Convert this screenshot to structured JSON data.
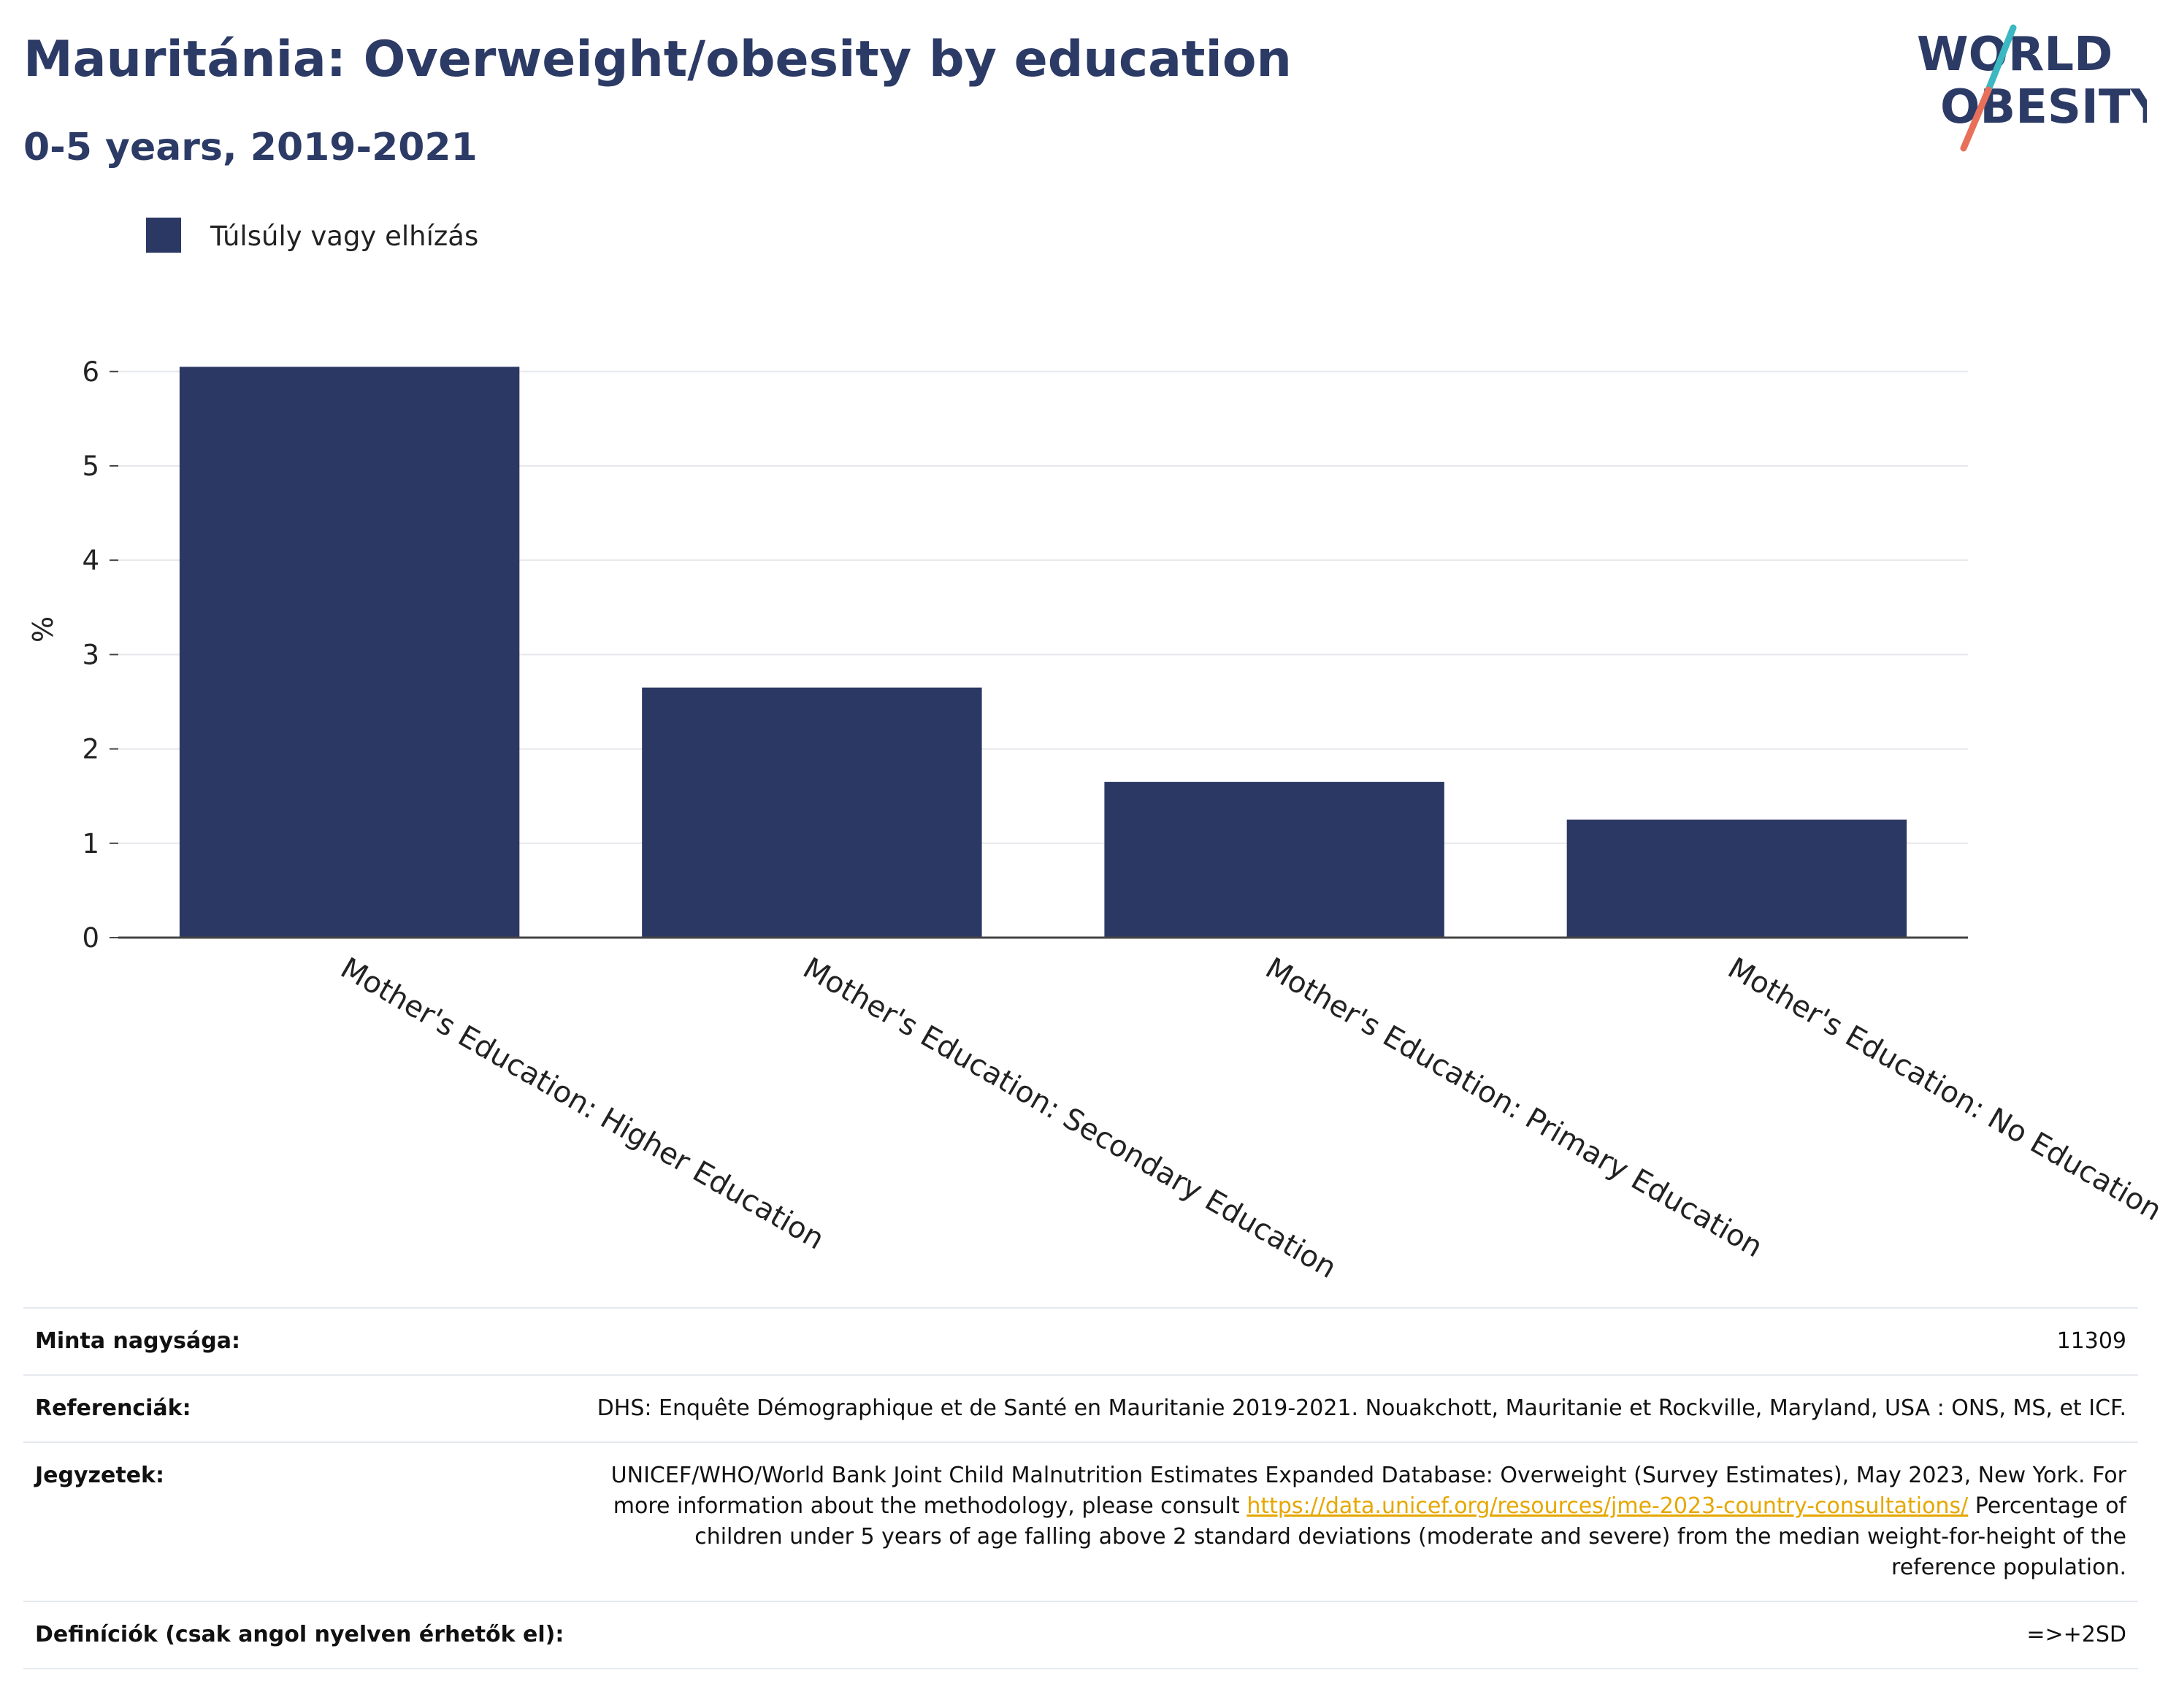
{
  "header": {
    "title": "Mauritánia: Overweight/obesity by education",
    "subtitle": "0-5 years, 2019-2021"
  },
  "logo": {
    "line1": "WORLD",
    "line2": "OBESITY",
    "text_color": "#2c3a66",
    "slash_top_color": "#3bb8c2",
    "slash_bottom_color": "#e8705a"
  },
  "colors": {
    "bar": "#2c3864",
    "title": "#2c3a66",
    "link": "#e6a700"
  },
  "chart_data": {
    "type": "bar",
    "title": "Mauritánia: Overweight/obesity by education",
    "subtitle": "0-5 years, 2019-2021",
    "ylabel": "%",
    "xlabel": "",
    "categories": [
      "Mother's Education: Higher Education",
      "Mother's Education: Secondary Education",
      "Mother's Education: Primary Education",
      "Mother's Education: No Education"
    ],
    "series": [
      {
        "name": "Túlsúly vagy elhízás",
        "color": "#2c3864",
        "values": [
          6.05,
          2.65,
          1.65,
          1.25
        ]
      }
    ],
    "ylim": [
      0,
      6.3
    ],
    "yticks": [
      0,
      1,
      2,
      3,
      4,
      5,
      6
    ],
    "grid": true,
    "legend_position": "top-left"
  },
  "table": {
    "sample_label": "Minta nagysága:",
    "sample_value": "11309",
    "references_label": "Referenciák:",
    "references_value": "DHS: Enquête Démographique et de Santé en Mauritanie 2019-2021. Nouakchott, Mauritanie et Rockville, Maryland, USA : ONS, MS, et ICF.",
    "notes_label": "Jegyzetek:",
    "notes_text_before": "UNICEF/WHO/World Bank Joint Child Malnutrition Estimates Expanded Database: Overweight (Survey Estimates), May 2023, New York. For more information about the methodology, please consult ",
    "notes_link": "https://data.unicef.org/resources/jme-2023-country-consultations/",
    "notes_text_after": " Percentage of children under 5 years of age falling above 2 standard deviations (moderate and severe) from the median weight-for-height of the reference population.",
    "definitions_label": "Definíciók (csak angol nyelven érhetők el):",
    "definitions_value": "=>+2SD"
  }
}
